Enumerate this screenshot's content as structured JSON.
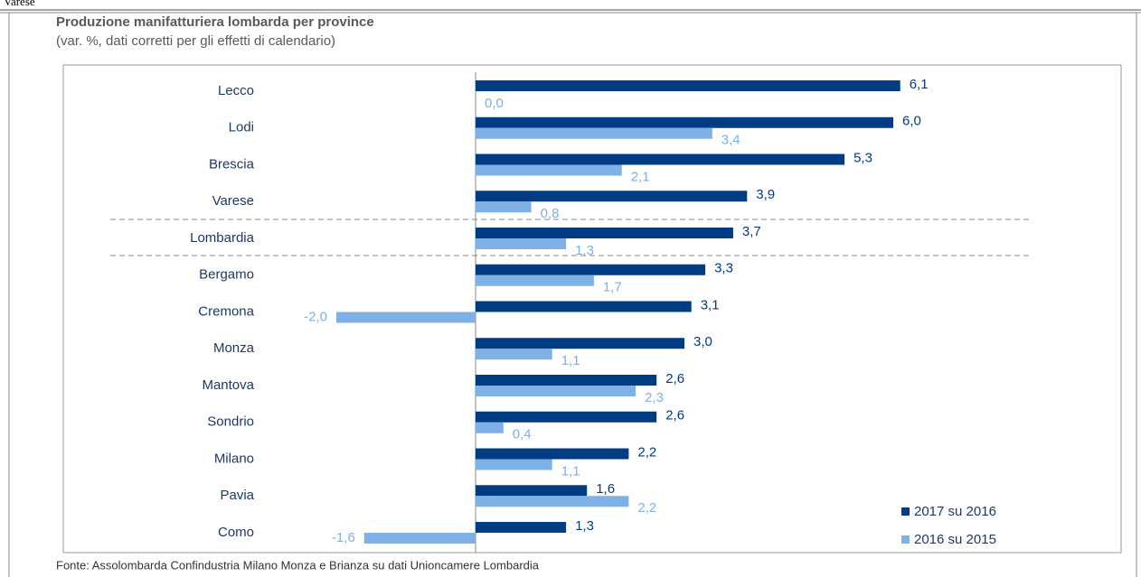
{
  "top_fragment": "Varese",
  "chart_data": {
    "type": "barh",
    "title": "Produzione manifatturiera lombarda per province",
    "subtitle": "(var. %, dati corretti per gli effetti di calendario)",
    "source": "Fonte: Assolombarda Confindustria Milano Monza e Brianza su dati Unioncamere Lombardia",
    "categories": [
      "Lecco",
      "Lodi",
      "Brescia",
      "Varese",
      "Lombardia",
      "Bergamo",
      "Cremona",
      "Monza",
      "Mantova",
      "Sondrio",
      "Milano",
      "Pavia",
      "Como"
    ],
    "series": [
      {
        "name": "2017 su 2016",
        "color": "#003c82",
        "values": [
          6.1,
          6.0,
          5.3,
          3.9,
          3.7,
          3.3,
          3.1,
          3.0,
          2.6,
          2.6,
          2.2,
          1.6,
          1.3
        ],
        "value_labels": [
          "6,1",
          "6,0",
          "5,3",
          "3,9",
          "3,7",
          "3,3",
          "3,1",
          "3,0",
          "2,6",
          "2,6",
          "2,2",
          "1,6",
          "1,3"
        ]
      },
      {
        "name": "2016 su 2015",
        "color": "#7fb0e6",
        "values": [
          0.0,
          3.4,
          2.1,
          0.8,
          1.3,
          1.7,
          -2.0,
          1.1,
          2.3,
          0.4,
          1.1,
          2.2,
          -1.6
        ],
        "value_labels": [
          "0,0",
          "3,4",
          "2,1",
          "0,8",
          "1,3",
          "1,7",
          "-2,0",
          "1,1",
          "2,3",
          "0,4",
          "1,1",
          "2,2",
          "-1,6"
        ]
      }
    ],
    "legend": "lower right"
  }
}
